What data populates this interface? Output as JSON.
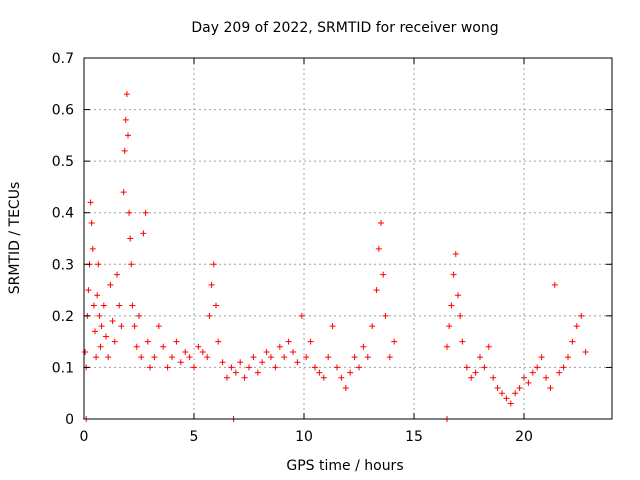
{
  "chart_data": {
    "type": "scatter",
    "title": "Day 209 of 2022, SRMTID for receiver wong",
    "xlabel": "GPS time / hours",
    "ylabel": "SRMTID / TECUs",
    "xlim": [
      0,
      24
    ],
    "ylim": [
      0,
      0.7
    ],
    "xticks": [
      "0",
      "5",
      "10",
      "15",
      "20"
    ],
    "xtick_values": [
      0,
      5,
      10,
      15,
      20
    ],
    "yticks": [
      "0",
      "0.1",
      "0.2",
      "0.3",
      "0.4",
      "0.5",
      "0.6",
      "0.7"
    ],
    "ytick_values": [
      0,
      0.1,
      0.2,
      0.3,
      0.4,
      0.5,
      0.6,
      0.7
    ],
    "grid": true,
    "marker": "+",
    "series": [
      {
        "name": "SRMTID",
        "color": "#ff0000",
        "x": [
          0.05,
          0.1,
          0.15,
          0.2,
          0.25,
          0.3,
          0.35,
          0.4,
          0.45,
          0.5,
          0.55,
          0.6,
          0.65,
          0.7,
          0.75,
          0.8,
          0.9,
          1.0,
          1.1,
          1.2,
          1.3,
          1.4,
          1.5,
          1.6,
          1.7,
          1.8,
          1.85,
          1.9,
          1.95,
          2.0,
          2.05,
          2.1,
          2.15,
          2.2,
          2.3,
          2.4,
          2.5,
          2.6,
          2.7,
          2.8,
          2.9,
          3.0,
          3.2,
          3.4,
          3.6,
          3.8,
          4.0,
          4.2,
          4.4,
          4.6,
          4.8,
          5.0,
          5.2,
          5.4,
          5.6,
          5.7,
          5.8,
          5.9,
          6.0,
          6.1,
          6.3,
          6.5,
          6.7,
          6.9,
          7.1,
          7.3,
          7.5,
          7.7,
          7.9,
          8.1,
          8.3,
          8.5,
          8.7,
          8.9,
          9.1,
          9.3,
          9.5,
          9.7,
          9.9,
          10.1,
          10.3,
          10.5,
          10.7,
          10.9,
          11.1,
          11.3,
          11.5,
          11.7,
          11.9,
          12.1,
          12.3,
          12.5,
          12.7,
          12.9,
          13.1,
          13.3,
          13.4,
          13.5,
          13.6,
          13.7,
          13.9,
          14.1,
          16.5,
          16.6,
          16.7,
          16.8,
          16.9,
          17.0,
          17.1,
          17.2,
          17.4,
          17.6,
          17.8,
          18.0,
          18.2,
          18.4,
          18.6,
          18.8,
          19.0,
          19.2,
          19.4,
          19.6,
          19.8,
          20.0,
          20.2,
          20.4,
          20.6,
          20.8,
          21.0,
          21.2,
          21.4,
          21.6,
          21.8,
          22.0,
          22.2,
          22.4,
          22.6,
          22.8
        ],
        "y": [
          0.13,
          0.1,
          0.2,
          0.25,
          0.3,
          0.42,
          0.38,
          0.33,
          0.22,
          0.17,
          0.12,
          0.24,
          0.3,
          0.2,
          0.14,
          0.18,
          0.22,
          0.16,
          0.12,
          0.26,
          0.19,
          0.15,
          0.28,
          0.22,
          0.18,
          0.44,
          0.52,
          0.58,
          0.63,
          0.55,
          0.4,
          0.35,
          0.3,
          0.22,
          0.18,
          0.14,
          0.2,
          0.12,
          0.36,
          0.4,
          0.15,
          0.1,
          0.12,
          0.18,
          0.14,
          0.1,
          0.12,
          0.15,
          0.11,
          0.13,
          0.12,
          0.1,
          0.14,
          0.13,
          0.12,
          0.2,
          0.26,
          0.3,
          0.22,
          0.15,
          0.11,
          0.08,
          0.1,
          0.09,
          0.11,
          0.08,
          0.1,
          0.12,
          0.09,
          0.11,
          0.13,
          0.12,
          0.1,
          0.14,
          0.12,
          0.15,
          0.13,
          0.11,
          0.2,
          0.12,
          0.15,
          0.1,
          0.09,
          0.08,
          0.12,
          0.18,
          0.1,
          0.08,
          0.06,
          0.09,
          0.12,
          0.1,
          0.14,
          0.12,
          0.18,
          0.25,
          0.33,
          0.38,
          0.28,
          0.2,
          0.12,
          0.15,
          0.14,
          0.18,
          0.22,
          0.28,
          0.32,
          0.24,
          0.2,
          0.15,
          0.1,
          0.08,
          0.09,
          0.12,
          0.1,
          0.14,
          0.08,
          0.06,
          0.05,
          0.04,
          0.03,
          0.05,
          0.06,
          0.08,
          0.07,
          0.09,
          0.1,
          0.12,
          0.08,
          0.06,
          0.26,
          0.09,
          0.1,
          0.12,
          0.15,
          0.18,
          0.2,
          0.13
        ],
        "x_zero": [
          0.1,
          6.8,
          16.5
        ],
        "y_zero": [
          0,
          0,
          0
        ]
      }
    ]
  }
}
